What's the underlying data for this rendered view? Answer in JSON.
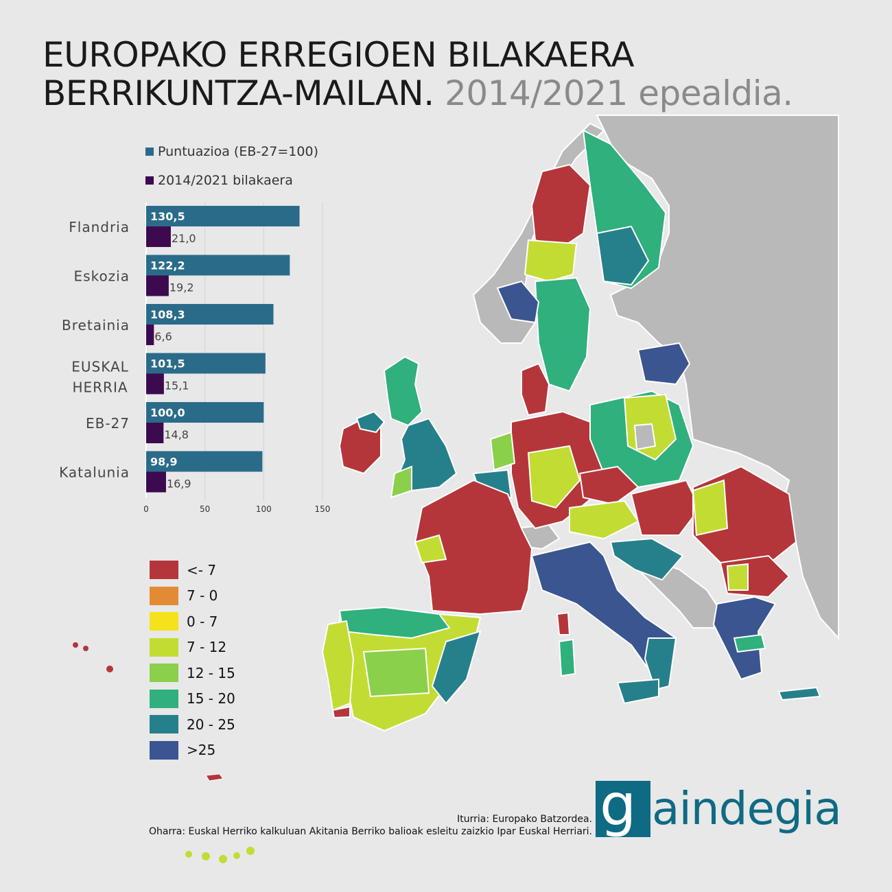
{
  "title": {
    "line1": "EUROPAKO ERREGIOEN BILAKAERA",
    "line2": "BERRIKUNTZA-MAILAN.",
    "line2_light": "2014/2021 epealdia."
  },
  "chart_data": {
    "type": "bar",
    "orientation": "horizontal",
    "categories": [
      "Flandria",
      "Eskozia",
      "Bretainia",
      "EUSKAL HERRIA",
      "EB-27",
      "Katalunia"
    ],
    "series": [
      {
        "name": "Puntuazioa (EB-27=100)",
        "values": [
          130.5,
          122.2,
          108.3,
          101.5,
          100.0,
          98.9
        ],
        "labels": [
          "130,5",
          "122,2",
          "108,3",
          "101,5",
          "100,0",
          "98,9"
        ],
        "color": "#2a6b8a"
      },
      {
        "name": "2014/2021 bilakaera",
        "values": [
          21.0,
          19.2,
          6.6,
          15.1,
          14.8,
          16.9
        ],
        "labels": [
          "21,0",
          "19,2",
          "6,6",
          "15,1",
          "14,8",
          "16,9"
        ],
        "color": "#3d0a4f"
      }
    ],
    "xticks": [
      "0",
      "50",
      "100",
      "150"
    ],
    "xlim": [
      0,
      150
    ],
    "grid": true
  },
  "legend": {
    "items": [
      {
        "label": "<- 7",
        "color": "#b5363a"
      },
      {
        "label": "7 - 0",
        "color": "#e38a35"
      },
      {
        "label": "0 - 7",
        "color": "#f5e21c"
      },
      {
        "label": "7 - 12",
        "color": "#c3dc33"
      },
      {
        "label": "12 - 15",
        "color": "#8bd04a"
      },
      {
        "label": "15 - 20",
        "color": "#2fb07c"
      },
      {
        "label": "20 - 25",
        "color": "#26808b"
      },
      {
        "label": ">25",
        "color": "#3a5590"
      }
    ]
  },
  "source": {
    "line1": "Iturria: Europako Batzordea.",
    "line2": "Oharra: Euskal Herriko kalkuluan Akitania Berriko balioak esleitu zaizkio Ipar Euskal Herriari."
  },
  "logo": {
    "mark": "g",
    "text": "aindegia",
    "color": "#0f6a84"
  }
}
